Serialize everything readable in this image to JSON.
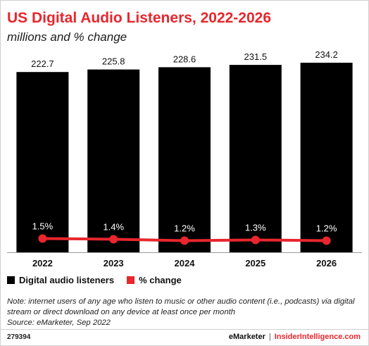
{
  "header": {
    "title": "US Digital Audio Listeners, 2022-2026",
    "subtitle": "millions and % change"
  },
  "chart_data": {
    "type": "bar",
    "categories": [
      "2022",
      "2023",
      "2024",
      "2025",
      "2026"
    ],
    "series": [
      {
        "name": "Digital audio listeners",
        "type": "bar",
        "values": [
          222.7,
          225.8,
          228.6,
          231.5,
          234.2
        ],
        "labels": [
          "222.7",
          "225.8",
          "228.6",
          "231.5",
          "234.2"
        ],
        "color": "#000000"
      },
      {
        "name": "% change",
        "type": "line",
        "values": [
          1.5,
          1.4,
          1.2,
          1.3,
          1.2
        ],
        "labels": [
          "1.5%",
          "1.4%",
          "1.2%",
          "1.3%",
          "1.2%"
        ],
        "color": "#e8262d"
      }
    ],
    "title": "US Digital Audio Listeners, 2022-2026",
    "subtitle": "millions and % change",
    "ylim": [
      0,
      234.2
    ],
    "grid": false,
    "legend_position": "bottom-left"
  },
  "legend": [
    {
      "label": "Digital audio listeners",
      "color": "#000000"
    },
    {
      "label": "% change",
      "color": "#e8262d"
    }
  ],
  "footer": {
    "note": "Note: internet users of any age who listen to music or other audio content (i.e., podcasts) via digital stream or direct download on any device at least once per month",
    "source": "Source: eMarketer, Sep 2022",
    "chart_id": "279394",
    "brand_1": "eMarketer",
    "separator": "|",
    "brand_2": "InsiderIntelligence.com"
  },
  "colors": {
    "accent": "#e8262d",
    "bar": "#000000",
    "text": "#111111"
  }
}
